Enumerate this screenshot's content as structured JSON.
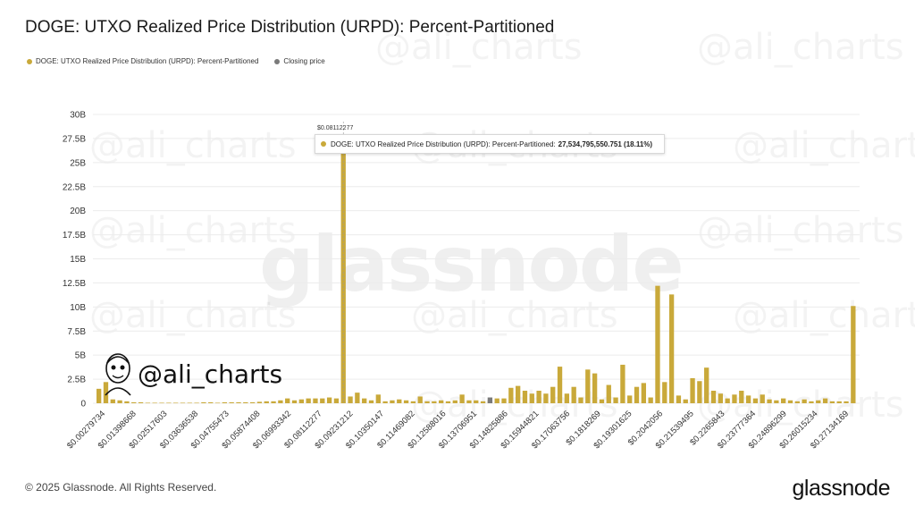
{
  "title": "DOGE: UTXO Realized Price Distribution (URPD): Percent-Partitioned",
  "legend": [
    {
      "label": "DOGE: UTXO Realized Price Distribution (URPD): Percent-Partitioned",
      "color": "#c9a93a"
    },
    {
      "label": "Closing price",
      "color": "#7a7a7a"
    }
  ],
  "watermark": {
    "handle": "@ali_charts",
    "brand": "glassnode"
  },
  "tooltip": {
    "x_label": "$0.08112277",
    "series_label": "DOGE: UTXO Realized Price Distribution (URPD): Percent-Partitioned:",
    "value": "27,534,795,550.751 (18.11%)"
  },
  "badge": {
    "handle": "@ali_charts"
  },
  "footer": {
    "copyright": "© 2025 Glassnode. All Rights Reserved.",
    "brand": "glassnode"
  },
  "chart_data": {
    "type": "bar",
    "title": "DOGE: UTXO Realized Price Distribution (URPD): Percent-Partitioned",
    "ylim": [
      0,
      30000000000
    ],
    "y_ticks": [
      "0",
      "2.5B",
      "5B",
      "7.5B",
      "10B",
      "12.5B",
      "15B",
      "17.5B",
      "20B",
      "22.5B",
      "25B",
      "27.5B",
      "30B"
    ],
    "y_tick_values": [
      0,
      2.5,
      5,
      7.5,
      10,
      12.5,
      15,
      17.5,
      20,
      22.5,
      25,
      27.5,
      30
    ],
    "x_tick_labels": [
      "$0.00279734",
      "$0.01398668",
      "$0.02517603",
      "$0.03636538",
      "$0.04755473",
      "$0.05874408",
      "$0.06993342",
      "$0.08112277",
      "$0.09231212",
      "$0.10350147",
      "$0.11469082",
      "$0.12588016",
      "$0.13706951",
      "$0.14825886",
      "$0.15944821",
      "$0.17063756",
      "$0.1818269",
      "$0.19301625",
      "$0.2042056",
      "$0.21539495",
      "$0.2265843",
      "$0.23777364",
      "$0.24896299",
      "$0.26015234",
      "$0.27134169"
    ],
    "grid": true,
    "legend_position": "top-left",
    "series": [
      {
        "name": "DOGE: UTXO Realized Price Distribution (URPD): Percent-Partitioned",
        "color": "#c9a93a",
        "values_billions": [
          1.5,
          2.2,
          0.4,
          0.3,
          0.2,
          0.1,
          0.1,
          0.05,
          0.05,
          0.05,
          0.05,
          0.05,
          0.05,
          0.05,
          0.05,
          0.1,
          0.1,
          0.05,
          0.1,
          0.1,
          0.1,
          0.1,
          0.1,
          0.15,
          0.2,
          0.2,
          0.3,
          0.5,
          0.3,
          0.4,
          0.5,
          0.5,
          0.5,
          0.6,
          0.5,
          27.53,
          0.7,
          1.1,
          0.5,
          0.3,
          0.9,
          0.2,
          0.3,
          0.4,
          0.3,
          0.2,
          0.7,
          0.2,
          0.2,
          0.3,
          0.2,
          0.3,
          0.9,
          0.3,
          0.3,
          0.2,
          0.3,
          0.5,
          0.5,
          1.6,
          1.8,
          1.3,
          1.0,
          1.3,
          1.0,
          1.7,
          3.8,
          1.0,
          1.7,
          0.6,
          3.5,
          3.1,
          0.4,
          1.9,
          0.6,
          4.0,
          0.8,
          1.7,
          2.1,
          0.6,
          12.2,
          2.2,
          11.3,
          0.8,
          0.4,
          2.6,
          2.3,
          3.7,
          1.3,
          1.0,
          0.5,
          0.9,
          1.3,
          0.8,
          0.5,
          0.9,
          0.4,
          0.3,
          0.5,
          0.3,
          0.2,
          0.4,
          0.2,
          0.3,
          0.5,
          0.2,
          0.2,
          0.2,
          10.1
        ]
      },
      {
        "name": "Closing price",
        "color": "#7a7a7a",
        "bar_index": 56,
        "value_billions": 0.6
      }
    ]
  }
}
